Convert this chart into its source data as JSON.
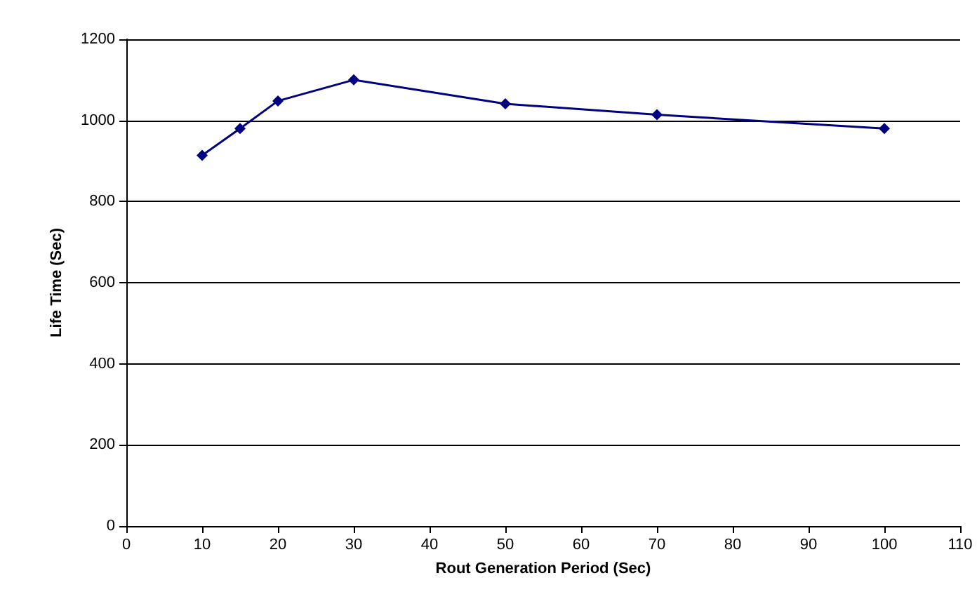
{
  "chart_data": {
    "type": "line",
    "xlabel": "Rout Generation Period (Sec)",
    "ylabel": "Life Time (Sec)",
    "x": [
      10,
      15,
      20,
      30,
      50,
      70,
      100
    ],
    "series": [
      {
        "color": "#000080",
        "values": [
          914,
          980,
          1048,
          1100,
          1041,
          1014,
          980
        ]
      }
    ],
    "xlim": [
      0,
      110
    ],
    "xticks": [
      0,
      10,
      20,
      30,
      40,
      50,
      60,
      70,
      80,
      90,
      100,
      110
    ],
    "ylim": [
      0,
      1200
    ],
    "yticks": [
      0,
      200,
      400,
      600,
      800,
      1000,
      1200
    ],
    "grid": "y",
    "marker": "diamond",
    "line_style": "solid"
  }
}
